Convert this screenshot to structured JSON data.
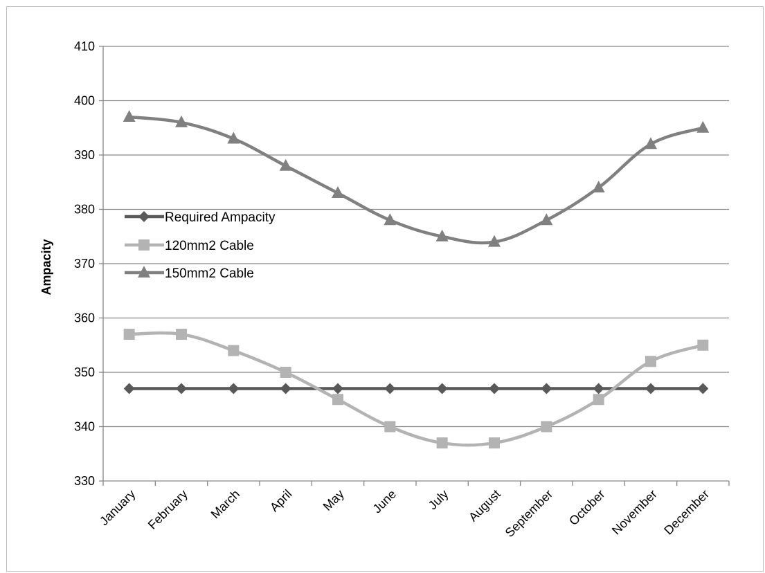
{
  "chart_data": {
    "type": "line",
    "title": "",
    "xlabel": "",
    "ylabel": "Ampacity",
    "ylim": [
      330,
      410
    ],
    "y_ticks": [
      330,
      340,
      350,
      360,
      370,
      380,
      390,
      400,
      410
    ],
    "grid": true,
    "legend_position": "left",
    "categories": [
      "January",
      "February",
      "March",
      "April",
      "May",
      "June",
      "July",
      "August",
      "September",
      "October",
      "November",
      "December"
    ],
    "series": [
      {
        "name": "Required Ampacity",
        "marker": "diamond",
        "color": "#595959",
        "values": [
          347,
          347,
          347,
          347,
          347,
          347,
          347,
          347,
          347,
          347,
          347,
          347
        ]
      },
      {
        "name": "120mm2 Cable",
        "marker": "square",
        "color": "#b3b3b3",
        "values": [
          357,
          357,
          354,
          350,
          345,
          340,
          337,
          337,
          340,
          345,
          352,
          355
        ]
      },
      {
        "name": "150mm2 Cable",
        "marker": "triangle",
        "color": "#808080",
        "values": [
          397,
          396,
          393,
          388,
          383,
          378,
          375,
          374,
          378,
          384,
          392,
          395
        ]
      }
    ]
  }
}
